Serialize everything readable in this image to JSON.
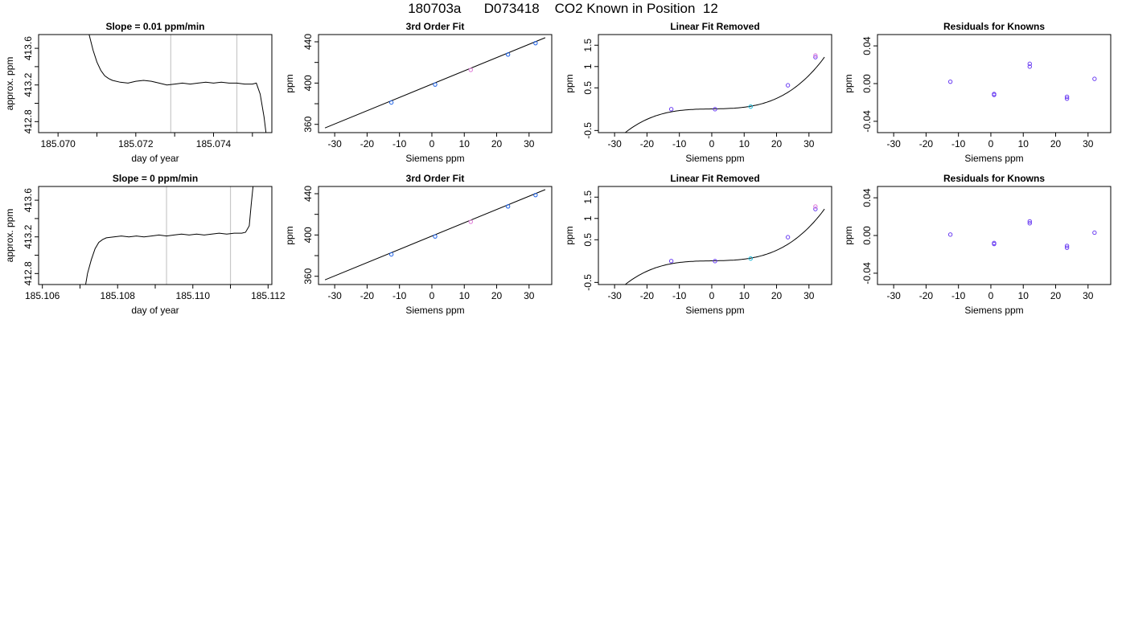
{
  "figure": {
    "title": "180703a      D073418    CO2 Known in Position  12"
  },
  "colors": {
    "points": "#6a3df2",
    "points_alt": "#1e62e8",
    "points_pink": "#e07ad8",
    "points_cyan": "#17b8d8",
    "line": "#000000",
    "marker_lines": "#c8c8c8",
    "box": "#000000"
  },
  "chart_data": [
    {
      "type": "line",
      "title": "Slope =  0.01  ppm/min",
      "xlabel": "day of year",
      "ylabel": "approx. ppm",
      "xlim": [
        185.0695,
        185.0755
      ],
      "ylim": [
        412.68,
        413.75
      ],
      "xticks": [
        185.07,
        185.071,
        185.072,
        185.073,
        185.074,
        185.075
      ],
      "xticklabels": [
        "185.070",
        "",
        "185.072",
        "",
        "185.074",
        ""
      ],
      "yticks": [
        412.8,
        413.0,
        413.2,
        413.4,
        413.6
      ],
      "yticklabels": [
        "412.8",
        "",
        "413.2",
        "",
        "413.6"
      ],
      "vlines": [
        185.0729,
        185.0746
      ],
      "x": [
        185.0708,
        185.0709,
        185.071,
        185.0711,
        185.0712,
        185.0713,
        185.0714,
        185.0716,
        185.0718,
        185.072,
        185.0722,
        185.0724,
        185.0726,
        185.0728,
        185.073,
        185.0732,
        185.0734,
        185.0736,
        185.0738,
        185.074,
        185.0742,
        185.0744,
        185.0746,
        185.0748,
        185.075,
        185.0751,
        185.0752,
        185.0753,
        185.07535
      ],
      "y": [
        413.75,
        413.58,
        413.45,
        413.36,
        413.3,
        413.27,
        413.25,
        413.23,
        413.22,
        413.24,
        413.25,
        413.24,
        413.22,
        413.2,
        413.21,
        413.22,
        413.21,
        413.22,
        413.23,
        413.22,
        413.23,
        413.22,
        413.22,
        413.21,
        413.21,
        413.22,
        413.1,
        412.85,
        412.68
      ]
    },
    {
      "type": "scatter",
      "title": "3rd Order Fit",
      "xlabel": "Siemens ppm",
      "ylabel": "ppm",
      "xlim": [
        -35,
        37
      ],
      "ylim": [
        352,
        447
      ],
      "xticks": [
        -30,
        -20,
        -10,
        0,
        10,
        20,
        30
      ],
      "yticks": [
        360,
        380,
        400,
        420,
        440
      ],
      "yticklabels": [
        "360",
        "",
        "400",
        "",
        "440"
      ],
      "curve": {
        "x": [
          -33,
          35
        ],
        "y": [
          356.5,
          444.0
        ]
      },
      "points": [
        {
          "x": -12.5,
          "y": 381.2,
          "color": "points_alt"
        },
        {
          "x": 1.0,
          "y": 398.6,
          "color": "points_alt"
        },
        {
          "x": 12.0,
          "y": 412.8,
          "color": "points_pink"
        },
        {
          "x": 23.5,
          "y": 427.7,
          "color": "points_alt"
        },
        {
          "x": 32.0,
          "y": 438.7,
          "color": "points_alt"
        }
      ]
    },
    {
      "type": "scatter",
      "title": "Linear Fit Removed",
      "xlabel": "Siemens ppm",
      "ylabel": "ppm",
      "xlim": [
        -35,
        37
      ],
      "ylim": [
        -0.55,
        1.75
      ],
      "xticks": [
        -30,
        -20,
        -10,
        0,
        10,
        20,
        30
      ],
      "yticks": [
        -0.5,
        0.5,
        1.0,
        1.5
      ],
      "curve_poly": [
        0.0061,
        0.00118,
        4.16e-06,
        2.77e-05
      ],
      "curve_range": [
        -32,
        34.8
      ],
      "points": [
        {
          "x": -12.5,
          "y": 0.0,
          "color": "points"
        },
        {
          "x": 1.0,
          "y": 0.0,
          "color": "points"
        },
        {
          "x": 12.0,
          "y": 0.06,
          "color": "points_cyan"
        },
        {
          "x": 23.5,
          "y": 0.56,
          "color": "points"
        },
        {
          "x": 32.0,
          "y": 1.22,
          "color": "points"
        },
        {
          "x": 32.0,
          "y": 1.26,
          "color": "points_pink"
        }
      ]
    },
    {
      "type": "scatter",
      "title": "Residuals for Knowns",
      "xlabel": "Siemens ppm",
      "ylabel": "ppm",
      "xlim": [
        -35,
        37
      ],
      "ylim": [
        -0.052,
        0.052
      ],
      "xticks": [
        -30,
        -20,
        -10,
        0,
        10,
        20,
        30
      ],
      "yticks": [
        -0.04,
        0.0,
        0.04
      ],
      "yticklabels": [
        "-0.04",
        "0.00",
        "0.04"
      ],
      "points": [
        {
          "x": -12.5,
          "y": 0.002,
          "color": "points"
        },
        {
          "x": 1.0,
          "y": -0.011,
          "color": "points"
        },
        {
          "x": 1.0,
          "y": -0.012,
          "color": "points"
        },
        {
          "x": 12.0,
          "y": 0.021,
          "color": "points"
        },
        {
          "x": 12.0,
          "y": 0.018,
          "color": "points"
        },
        {
          "x": 23.5,
          "y": -0.014,
          "color": "points"
        },
        {
          "x": 23.5,
          "y": -0.016,
          "color": "points"
        },
        {
          "x": 32.0,
          "y": 0.005,
          "color": "points"
        }
      ]
    },
    {
      "type": "line",
      "title": "Slope =  0  ppm/min",
      "xlabel": "day of year",
      "ylabel": "approx. ppm",
      "xlim": [
        185.1059,
        185.1121
      ],
      "ylim": [
        412.68,
        413.75
      ],
      "xticks": [
        185.106,
        185.107,
        185.108,
        185.109,
        185.11,
        185.111,
        185.112
      ],
      "xticklabels": [
        "185.106",
        "",
        "185.108",
        "",
        "185.110",
        "",
        "185.112"
      ],
      "yticks": [
        412.8,
        413.0,
        413.2,
        413.4,
        413.6
      ],
      "yticklabels": [
        "412.8",
        "",
        "413.2",
        "",
        "413.6"
      ],
      "vlines": [
        185.1093,
        185.111
      ],
      "x": [
        185.10715,
        185.1072,
        185.1073,
        185.1074,
        185.1075,
        185.1076,
        185.1077,
        185.1079,
        185.1081,
        185.1083,
        185.1085,
        185.1087,
        185.1089,
        185.1091,
        185.1093,
        185.1095,
        185.1097,
        185.1099,
        185.1101,
        185.1103,
        185.1105,
        185.1107,
        185.1109,
        185.1111,
        185.1113,
        185.1114,
        185.1115,
        185.11155,
        185.1116
      ],
      "y": [
        412.68,
        412.8,
        412.95,
        413.07,
        413.14,
        413.17,
        413.19,
        413.2,
        413.21,
        413.2,
        413.21,
        413.2,
        413.21,
        413.22,
        413.21,
        413.22,
        413.23,
        413.22,
        413.23,
        413.22,
        413.23,
        413.24,
        413.23,
        413.24,
        413.24,
        413.25,
        413.32,
        413.55,
        413.75
      ]
    },
    {
      "type": "scatter",
      "title": "3rd Order Fit",
      "xlabel": "Siemens ppm",
      "ylabel": "ppm",
      "xlim": [
        -35,
        37
      ],
      "ylim": [
        352,
        447
      ],
      "xticks": [
        -30,
        -20,
        -10,
        0,
        10,
        20,
        30
      ],
      "yticks": [
        360,
        380,
        400,
        420,
        440
      ],
      "yticklabels": [
        "360",
        "",
        "400",
        "",
        "440"
      ],
      "curve": {
        "x": [
          -33,
          35
        ],
        "y": [
          356.5,
          444.0
        ]
      },
      "points": [
        {
          "x": -12.5,
          "y": 381.2,
          "color": "points_alt"
        },
        {
          "x": 1.0,
          "y": 398.6,
          "color": "points_alt"
        },
        {
          "x": 12.0,
          "y": 412.8,
          "color": "points_pink"
        },
        {
          "x": 23.5,
          "y": 427.7,
          "color": "points_alt"
        },
        {
          "x": 32.0,
          "y": 438.7,
          "color": "points_alt"
        }
      ]
    },
    {
      "type": "scatter",
      "title": "Linear Fit Removed",
      "xlabel": "Siemens ppm",
      "ylabel": "ppm",
      "xlim": [
        -35,
        37
      ],
      "ylim": [
        -0.55,
        1.75
      ],
      "xticks": [
        -30,
        -20,
        -10,
        0,
        10,
        20,
        30
      ],
      "yticks": [
        -0.5,
        0.5,
        1.0,
        1.5
      ],
      "curve_poly": [
        0.0061,
        0.00118,
        4.16e-06,
        2.77e-05
      ],
      "curve_range": [
        -32,
        34.8
      ],
      "points": [
        {
          "x": -12.5,
          "y": 0.0,
          "color": "points"
        },
        {
          "x": 1.0,
          "y": 0.0,
          "color": "points"
        },
        {
          "x": 12.0,
          "y": 0.06,
          "color": "points_cyan"
        },
        {
          "x": 23.5,
          "y": 0.56,
          "color": "points"
        },
        {
          "x": 32.0,
          "y": 1.22,
          "color": "points"
        },
        {
          "x": 32.0,
          "y": 1.28,
          "color": "points_pink"
        }
      ]
    },
    {
      "type": "scatter",
      "title": "Residuals for Knowns",
      "xlabel": "Siemens ppm",
      "ylabel": "ppm",
      "xlim": [
        -35,
        37
      ],
      "ylim": [
        -0.052,
        0.052
      ],
      "xticks": [
        -30,
        -20,
        -10,
        0,
        10,
        20,
        30
      ],
      "yticks": [
        -0.04,
        0.0,
        0.04
      ],
      "yticklabels": [
        "-0.04",
        "0.00",
        "0.04"
      ],
      "points": [
        {
          "x": -12.5,
          "y": 0.001,
          "color": "points"
        },
        {
          "x": 1.0,
          "y": -0.008,
          "color": "points"
        },
        {
          "x": 1.0,
          "y": -0.009,
          "color": "points"
        },
        {
          "x": 12.0,
          "y": 0.015,
          "color": "points"
        },
        {
          "x": 12.0,
          "y": 0.013,
          "color": "points"
        },
        {
          "x": 23.5,
          "y": -0.011,
          "color": "points"
        },
        {
          "x": 23.5,
          "y": -0.013,
          "color": "points"
        },
        {
          "x": 32.0,
          "y": 0.003,
          "color": "points"
        }
      ]
    }
  ]
}
